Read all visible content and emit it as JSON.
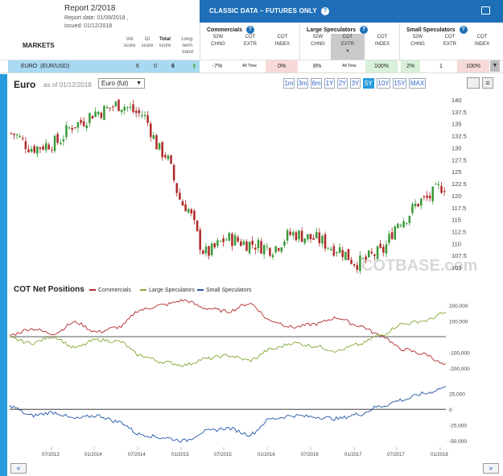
{
  "report": {
    "title": "Report 2/2018",
    "date_line": "Report date: 01/09/2018 ,",
    "issued_line": "issued: 01/12/2018"
  },
  "markets": {
    "label": "MARKETS",
    "col_vol": [
      "Vol",
      "score"
    ],
    "col_oi": [
      "OI",
      "score"
    ],
    "col_total": [
      "Total",
      "score"
    ],
    "col_trend": [
      "Long-",
      "term",
      "trend"
    ]
  },
  "classic": {
    "title": "CLASSIC DATA – FUTURES ONLY",
    "help": "?",
    "groups": [
      {
        "title": "Commercials",
        "cols": [
          [
            "52W",
            "CHNG"
          ],
          [
            "COT",
            "EXTR"
          ],
          [
            "COT",
            "INDEX"
          ]
        ]
      },
      {
        "title": "Large Speculators",
        "cols": [
          [
            "52W",
            "CHNG"
          ],
          [
            "COT",
            "EXTR"
          ],
          [
            "COT",
            "INDEX"
          ]
        ]
      },
      {
        "title": "Small Speculators",
        "cols": [
          [
            "52W",
            "CHNG"
          ],
          [
            "COT",
            "EXTR"
          ],
          [
            "COT",
            "INDEX"
          ]
        ]
      }
    ]
  },
  "euro_row": {
    "name": "EURO",
    "symbol": "(EUR/USD)",
    "vol": "6",
    "oi": "0",
    "total": "6",
    "trend_icon": "up-arrow-icon",
    "cells": [
      "-7%",
      "All Time",
      "0%",
      "8%",
      "All Time",
      "100%",
      "2%",
      "1",
      "100%"
    ]
  },
  "chart_header": {
    "title": "Euro",
    "asof": "as of 01/12/2018",
    "select_value": "Euro (fut)",
    "ranges": [
      "1m",
      "3m",
      "6m",
      "1Y",
      "2Y",
      "3Y",
      "5Y",
      "10Y",
      "15Y",
      "MAX"
    ],
    "active_range": "5Y"
  },
  "watermark": "COTBASE.com",
  "cot_panel": {
    "title": "COT Net Positions",
    "legend": [
      "Commercials",
      "Large Speculators",
      "Small Speculators"
    ]
  },
  "colors": {
    "commercials": "#b02a2a",
    "large_specs": "#7fa832",
    "small_specs": "#2255a8",
    "up_candle": "#3a9a3a",
    "down_candle": "#b02a2a",
    "accent": "#2a9bdc"
  },
  "nav": {
    "prev": "«",
    "next": "»"
  },
  "chart_data": [
    {
      "type": "candlestick",
      "title": "Euro",
      "ylim": [
        103,
        141
      ],
      "yticks": [
        "140",
        "137.5",
        "135",
        "132.5",
        "130",
        "127.5",
        "125",
        "122.5",
        "120",
        "117.5",
        "115",
        "112.5",
        "110",
        "107.5",
        "105"
      ],
      "x": [
        "2013-01",
        "2013-04",
        "2013-07",
        "2013-10",
        "2014-01",
        "2014-04",
        "2014-07",
        "2014-10",
        "2015-01",
        "2015-04",
        "2015-07",
        "2015-10",
        "2016-01",
        "2016-04",
        "2016-07",
        "2016-10",
        "2017-01",
        "2017-04",
        "2017-07",
        "2017-10",
        "2018-01"
      ],
      "close": [
        133,
        130,
        131,
        135,
        137.5,
        139,
        137,
        129,
        118,
        108,
        111,
        110,
        109,
        112,
        111,
        109,
        106,
        108,
        115,
        119,
        122
      ]
    },
    {
      "type": "line",
      "title": "COT Net Positions",
      "ylim": [
        -250000,
        250000
      ],
      "yticks": [
        "200,000",
        "100,000",
        "-100,000",
        "-200,000"
      ],
      "x": [
        "2013-01",
        "2013-04",
        "2013-07",
        "2013-10",
        "2014-01",
        "2014-04",
        "2014-07",
        "2014-10",
        "2015-01",
        "2015-04",
        "2015-07",
        "2015-10",
        "2016-01",
        "2016-04",
        "2016-07",
        "2016-10",
        "2017-01",
        "2017-04",
        "2017-07",
        "2017-10",
        "2018-01"
      ],
      "series": [
        {
          "name": "Commercials",
          "values": [
            10000,
            50000,
            20000,
            90000,
            30000,
            60000,
            170000,
            200000,
            230000,
            180000,
            160000,
            210000,
            100000,
            60000,
            80000,
            120000,
            70000,
            10000,
            -80000,
            -110000,
            -180000
          ]
        },
        {
          "name": "Large Speculators",
          "values": [
            -10000,
            -40000,
            0,
            -70000,
            -20000,
            -30000,
            -120000,
            -160000,
            -180000,
            -140000,
            -120000,
            -150000,
            -80000,
            -40000,
            -60000,
            -90000,
            -50000,
            10000,
            80000,
            100000,
            150000
          ]
        }
      ]
    },
    {
      "type": "line",
      "title": "Small Speculators",
      "ylim": [
        -60000,
        40000
      ],
      "yticks": [
        "25,000",
        "0",
        "-25,000",
        "-50,000"
      ],
      "x_tick_labels": [
        "07/2013",
        "01/2014",
        "07/2014",
        "01/2015",
        "07/2015",
        "01/2016",
        "07/2016",
        "01/2017",
        "07/2017",
        "01/2018"
      ],
      "x": [
        "2013-01",
        "2013-04",
        "2013-07",
        "2013-10",
        "2014-01",
        "2014-04",
        "2014-07",
        "2014-10",
        "2015-01",
        "2015-04",
        "2015-07",
        "2015-10",
        "2016-01",
        "2016-04",
        "2016-07",
        "2016-10",
        "2017-01",
        "2017-04",
        "2017-07",
        "2017-10",
        "2018-01"
      ],
      "series": [
        {
          "name": "Small Speculators",
          "values": [
            5000,
            -10000,
            -5000,
            -15000,
            -10000,
            -20000,
            -40000,
            -45000,
            -50000,
            -35000,
            -30000,
            -40000,
            -15000,
            -10000,
            -12000,
            -15000,
            -8000,
            5000,
            15000,
            25000,
            35000
          ]
        }
      ]
    }
  ]
}
